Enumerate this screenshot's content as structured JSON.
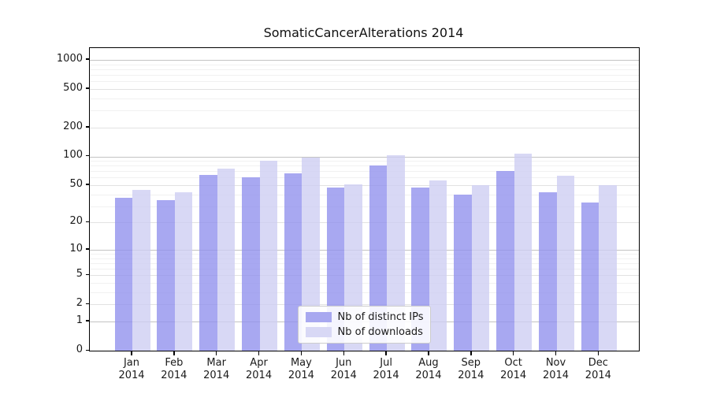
{
  "title": "SomaticCancerAlterations 2014",
  "chart_data": {
    "type": "bar",
    "title": "SomaticCancerAlterations 2014",
    "x_months": [
      "Jan",
      "Feb",
      "Mar",
      "Apr",
      "May",
      "Jun",
      "Jul",
      "Aug",
      "Sep",
      "Oct",
      "Nov",
      "Dec"
    ],
    "x_year": "2014",
    "series": [
      {
        "name": "Nb of distinct IPs",
        "color_solid": "#a8a8f0",
        "color_rgba": "rgba(146,146,238,0.8)",
        "values": [
          37,
          35,
          64,
          61,
          67,
          47,
          81,
          47,
          40,
          71,
          42,
          33
        ]
      },
      {
        "name": "Nb of downloads",
        "color_solid": "#d8d8f5",
        "color_rgba": "rgba(206,206,243,0.8)",
        "values": [
          45,
          42,
          74,
          91,
          97,
          51,
          103,
          56,
          50,
          107,
          63,
          50
        ]
      }
    ],
    "y_scale": "log10(value+1)",
    "y_ticks": [
      0,
      1,
      2,
      5,
      10,
      20,
      50,
      100,
      200,
      500,
      1000
    ],
    "ylim": [
      0,
      1324
    ],
    "grid": "both",
    "legend_position": "lower center",
    "colors": {
      "grid_major": "#c3c3c3",
      "grid_mid": "#e2e2e2",
      "grid_minor": "#f1f1f1",
      "spine": "#000000",
      "text": "#1a1a1a"
    }
  }
}
